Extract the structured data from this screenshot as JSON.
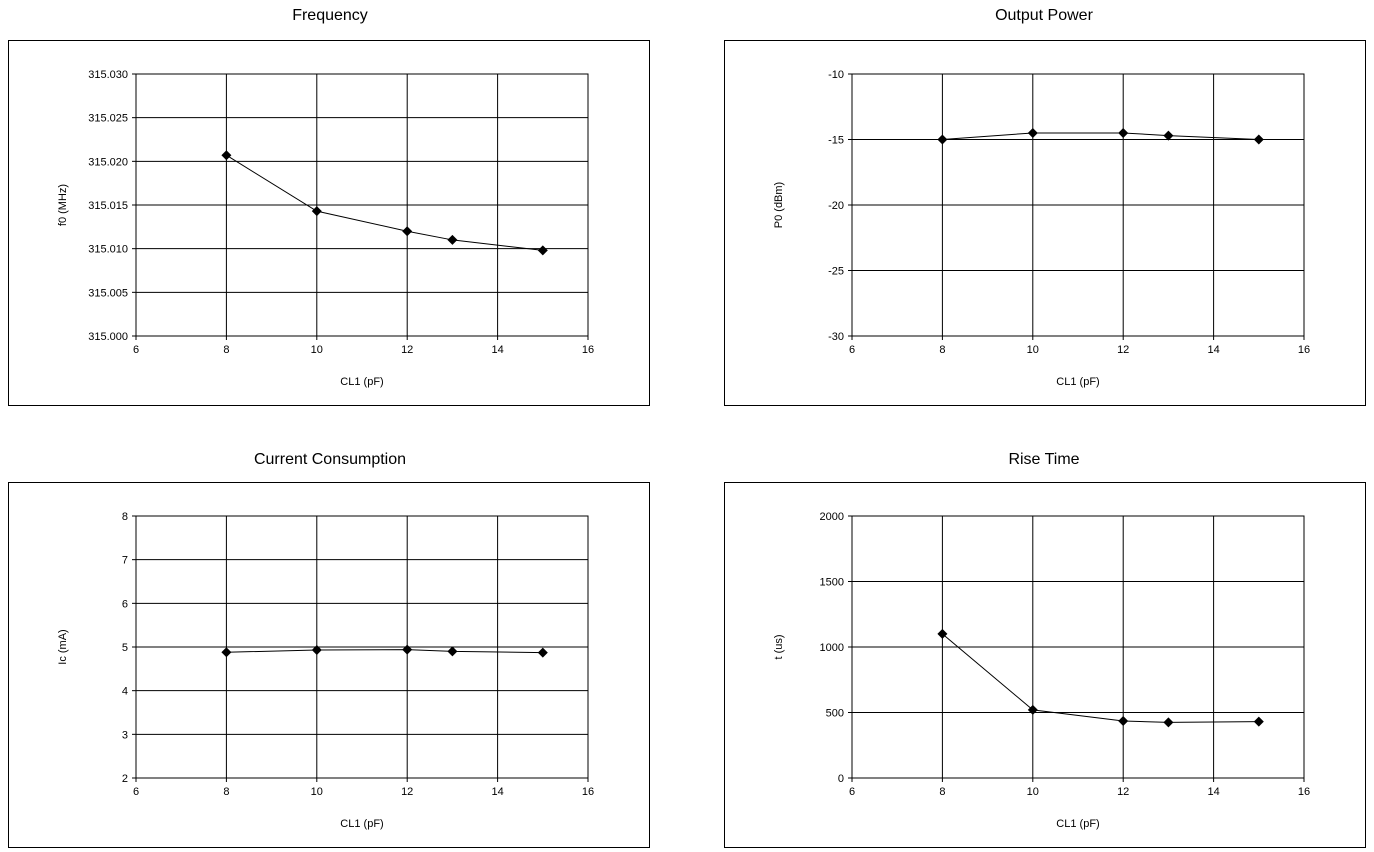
{
  "chart_data": [
    {
      "type": "line",
      "title": "Frequency",
      "xlabel": "CL1 (pF)",
      "ylabel": "f0 (MHz)",
      "xlim": [
        6,
        16
      ],
      "ylim": [
        315.0,
        315.03
      ],
      "xticks": [
        6,
        8,
        10,
        12,
        14,
        16
      ],
      "xtick_labels": [
        "6",
        "8",
        "10",
        "12",
        "14",
        "16"
      ],
      "yticks": [
        315.0,
        315.005,
        315.01,
        315.015,
        315.02,
        315.025,
        315.03
      ],
      "ytick_labels": [
        "315.000",
        "315.005",
        "315.010",
        "315.015",
        "315.020",
        "315.025",
        "315.030"
      ],
      "grid": true,
      "series": [
        {
          "x": [
            8,
            10,
            12,
            13,
            15
          ],
          "y": [
            315.0207,
            315.0143,
            315.012,
            315.011,
            315.0098
          ],
          "marker": "diamond"
        }
      ]
    },
    {
      "type": "line",
      "title": "Output Power",
      "xlabel": "CL1 (pF)",
      "ylabel": "P0 (dBm)",
      "xlim": [
        6,
        16
      ],
      "ylim": [
        -30,
        -10
      ],
      "xticks": [
        6,
        8,
        10,
        12,
        14,
        16
      ],
      "xtick_labels": [
        "6",
        "8",
        "10",
        "12",
        "14",
        "16"
      ],
      "yticks": [
        -30,
        -25,
        -20,
        -15,
        -10
      ],
      "ytick_labels": [
        "-30",
        "-25",
        "-20",
        "-15",
        "-10"
      ],
      "grid": true,
      "series": [
        {
          "x": [
            8,
            10,
            12,
            13,
            15
          ],
          "y": [
            -15.0,
            -14.5,
            -14.5,
            -14.7,
            -15.0
          ],
          "marker": "diamond"
        }
      ]
    },
    {
      "type": "line",
      "title": "Current Consumption",
      "xlabel": "CL1 (pF)",
      "ylabel": "Ic (mA)",
      "xlim": [
        6,
        16
      ],
      "ylim": [
        2,
        8
      ],
      "xticks": [
        6,
        8,
        10,
        12,
        14,
        16
      ],
      "xtick_labels": [
        "6",
        "8",
        "10",
        "12",
        "14",
        "16"
      ],
      "yticks": [
        2,
        3,
        4,
        5,
        6,
        7,
        8
      ],
      "ytick_labels": [
        "2",
        "3",
        "4",
        "5",
        "6",
        "7",
        "8"
      ],
      "grid": true,
      "series": [
        {
          "x": [
            8,
            10,
            12,
            13,
            15
          ],
          "y": [
            4.88,
            4.93,
            4.94,
            4.9,
            4.87
          ],
          "marker": "diamond"
        }
      ]
    },
    {
      "type": "line",
      "title": "Rise Time",
      "xlabel": "CL1 (pF)",
      "ylabel": "t (us)",
      "xlim": [
        6,
        16
      ],
      "ylim": [
        0,
        2000
      ],
      "xticks": [
        6,
        8,
        10,
        12,
        14,
        16
      ],
      "xtick_labels": [
        "6",
        "8",
        "10",
        "12",
        "14",
        "16"
      ],
      "yticks": [
        0,
        500,
        1000,
        1500,
        2000
      ],
      "ytick_labels": [
        "0",
        "500",
        "1000",
        "1500",
        "2000"
      ],
      "grid": true,
      "series": [
        {
          "x": [
            8,
            10,
            12,
            13,
            15
          ],
          "y": [
            1100,
            520,
            435,
            425,
            430
          ],
          "marker": "diamond"
        }
      ]
    }
  ]
}
